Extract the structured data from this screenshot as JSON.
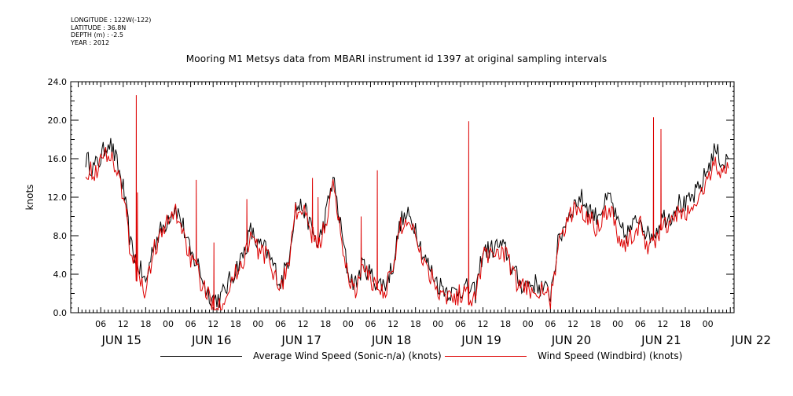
{
  "header": {
    "lines": [
      "LONGITUDE : 122W(-122)",
      "LATITUDE : 36.8N",
      "DEPTH (m) : -2.5",
      "YEAR : 2012"
    ],
    "title": "Mooring M1 Metsys data from MBARI instrument id 1397 at original sampling intervals"
  },
  "colors": {
    "series_black": "#000000",
    "series_red": "#dd0000",
    "axis": "#000000"
  },
  "chart_data": {
    "type": "line",
    "title": "Mooring M1 Metsys data from MBARI instrument id 1397 at original sampling intervals",
    "ylabel": "knots",
    "ylim": [
      0,
      24
    ],
    "yticks": [
      "0.0",
      "4.0",
      "8.0",
      "12.0",
      "16.0",
      "20.0",
      "24.0"
    ],
    "x_unit": "hours since JUN 15 00:00, 2012",
    "xlim": [
      2,
      12.7
    ],
    "hour_tick_labels": [
      "06",
      "12",
      "18",
      "00",
      "06",
      "12",
      "18",
      "00",
      "06",
      "12",
      "18",
      "00",
      "06",
      "12",
      "18",
      "00",
      "06",
      "12",
      "18",
      "00",
      "06",
      "12",
      "18",
      "00",
      "06",
      "12",
      "18",
      "00"
    ],
    "day_labels": [
      "JUN 15",
      "JUN 16",
      "JUN 17",
      "JUN 18",
      "JUN 19",
      "JUN 20",
      "JUN 21",
      "JUN 22"
    ],
    "legend_placement": "bottom",
    "grid": false,
    "series": [
      {
        "name": "Average Wind Speed (Sonic-n/a) (knots)",
        "color": "#000000",
        "x": [
          2,
          4,
          6,
          8,
          10,
          12,
          14,
          16,
          18,
          20,
          22,
          23,
          24,
          26,
          28,
          30,
          32,
          34,
          36,
          38,
          40,
          42,
          44,
          46,
          48,
          50,
          52,
          54,
          56,
          58,
          60,
          62,
          64,
          66,
          68,
          70,
          72,
          74,
          76,
          78,
          80,
          82,
          84,
          86,
          88,
          90,
          92,
          94,
          96,
          98,
          100,
          102,
          104,
          106,
          108,
          110,
          112,
          114,
          116,
          118,
          120,
          122,
          124,
          126,
          128,
          130,
          132,
          134,
          136,
          138,
          140,
          142,
          144,
          146,
          148,
          150,
          152,
          154,
          156,
          158,
          160,
          162,
          164,
          166,
          168,
          170,
          172,
          173.5
        ],
        "y": [
          16,
          15,
          16,
          18,
          16,
          13,
          7,
          5,
          3,
          7,
          8.5,
          9,
          10,
          11,
          9,
          6,
          5,
          2.5,
          1.5,
          1.5,
          3,
          4.5,
          6,
          8.5,
          7,
          6.5,
          5,
          3,
          5.5,
          11,
          11,
          9,
          7,
          10,
          14,
          9,
          4,
          3,
          5,
          4,
          3,
          3,
          5,
          9.5,
          10,
          9,
          6,
          4.5,
          3,
          2.5,
          2,
          2.5,
          2.5,
          2,
          6.5,
          6.5,
          7,
          6.5,
          4.5,
          3,
          3,
          3,
          2.5,
          2,
          7,
          9.5,
          11,
          12,
          11,
          10,
          11,
          12,
          9,
          8,
          9,
          10,
          8,
          8.5,
          10,
          10,
          11.5,
          11,
          12,
          13,
          15,
          17,
          15.5,
          16
        ]
      },
      {
        "name": "Wind Speed (Windbird) (knots)",
        "color": "#dd0000",
        "x": [
          2,
          4,
          6,
          8,
          10,
          12,
          14,
          16,
          18,
          20,
          22,
          23,
          24,
          26,
          28,
          30,
          32,
          34,
          36,
          38,
          40,
          42,
          44,
          46,
          48,
          50,
          52,
          54,
          56,
          58,
          60,
          62,
          64,
          66,
          68,
          70,
          72,
          74,
          76,
          78,
          80,
          82,
          84,
          86,
          88,
          90,
          92,
          94,
          96,
          98,
          100,
          102,
          104,
          106,
          108,
          110,
          112,
          114,
          116,
          118,
          120,
          122,
          124,
          126,
          128,
          130,
          132,
          134,
          136,
          138,
          140,
          142,
          144,
          146,
          148,
          150,
          152,
          154,
          156,
          158,
          160,
          162,
          164,
          166,
          168,
          170,
          172,
          173.5
        ],
        "y": [
          15,
          14.5,
          15.5,
          17,
          15,
          12.5,
          6,
          4,
          2,
          6.5,
          8,
          8.5,
          9.5,
          10.5,
          8.5,
          5.5,
          4,
          2,
          1,
          1,
          2.5,
          4,
          5.5,
          8,
          6.5,
          6,
          4.5,
          2.5,
          5,
          10.5,
          10.5,
          8.5,
          6.5,
          9.5,
          13,
          8.5,
          3.5,
          2.5,
          4.5,
          3.5,
          2.5,
          2.5,
          4.5,
          9,
          9.5,
          8.5,
          5.5,
          4,
          2.5,
          2,
          1.5,
          2,
          2,
          1.5,
          6,
          6,
          6.5,
          6,
          4,
          2.5,
          2.5,
          2.5,
          2,
          1.5,
          6.5,
          9,
          10.5,
          11,
          10,
          9,
          10,
          11,
          8,
          7,
          8,
          9,
          7,
          7.5,
          9,
          9,
          10.5,
          10,
          11,
          12,
          14,
          15.5,
          14.5,
          15
        ]
      }
    ],
    "spikes": [
      {
        "series": 1,
        "x": 15.5,
        "y": 22.6
      },
      {
        "series": 1,
        "x": 15.8,
        "y": 12.5
      },
      {
        "series": 1,
        "x": 13.0,
        "y": 10.8
      },
      {
        "series": 1,
        "x": 31.5,
        "y": 13.8
      },
      {
        "series": 1,
        "x": 36.2,
        "y": 7.3
      },
      {
        "series": 1,
        "x": 45.0,
        "y": 11.8
      },
      {
        "series": 1,
        "x": 62.5,
        "y": 14.0
      },
      {
        "series": 1,
        "x": 64.0,
        "y": 12.0
      },
      {
        "series": 1,
        "x": 75.5,
        "y": 10.0
      },
      {
        "series": 1,
        "x": 79.8,
        "y": 14.8
      },
      {
        "series": 1,
        "x": 104.2,
        "y": 19.9
      },
      {
        "series": 1,
        "x": 153.5,
        "y": 20.3
      },
      {
        "series": 1,
        "x": 155.5,
        "y": 19.1
      }
    ]
  },
  "legend": {
    "black_label": "Average Wind Speed (Sonic-n/a) (knots)",
    "red_label": "Wind Speed (Windbird) (knots)"
  }
}
